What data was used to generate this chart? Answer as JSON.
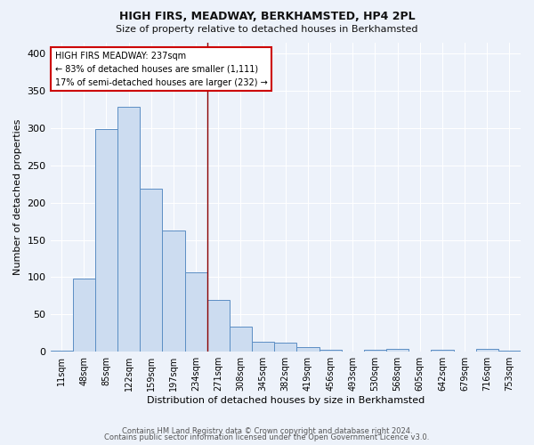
{
  "title": "HIGH FIRS, MEADWAY, BERKHAMSTED, HP4 2PL",
  "subtitle": "Size of property relative to detached houses in Berkhamsted",
  "xlabel": "Distribution of detached houses by size in Berkhamsted",
  "ylabel": "Number of detached properties",
  "footnote1": "Contains HM Land Registry data © Crown copyright and database right 2024.",
  "footnote2": "Contains public sector information licensed under the Open Government Licence v3.0.",
  "bar_labels": [
    "11sqm",
    "48sqm",
    "85sqm",
    "122sqm",
    "159sqm",
    "197sqm",
    "234sqm",
    "271sqm",
    "308sqm",
    "345sqm",
    "382sqm",
    "419sqm",
    "456sqm",
    "493sqm",
    "530sqm",
    "568sqm",
    "605sqm",
    "642sqm",
    "679sqm",
    "716sqm",
    "753sqm"
  ],
  "bar_values": [
    2,
    98,
    299,
    328,
    219,
    162,
    106,
    69,
    34,
    13,
    12,
    6,
    3,
    0,
    3,
    4,
    0,
    3,
    0,
    4,
    2
  ],
  "bar_color": "#ccdcf0",
  "bar_edge_color": "#5b8ec4",
  "bg_color": "#edf2fa",
  "grid_color": "#ffffff",
  "marker_bin_index": 6.5,
  "marker_color": "#8b0000",
  "annotation_title": "HIGH FIRS MEADWAY: 237sqm",
  "annotation_line1": "← 83% of detached houses are smaller (1,111)",
  "annotation_line2": "17% of semi-detached houses are larger (232) →",
  "ylim": [
    0,
    415
  ],
  "yticks": [
    0,
    50,
    100,
    150,
    200,
    250,
    300,
    350,
    400
  ]
}
